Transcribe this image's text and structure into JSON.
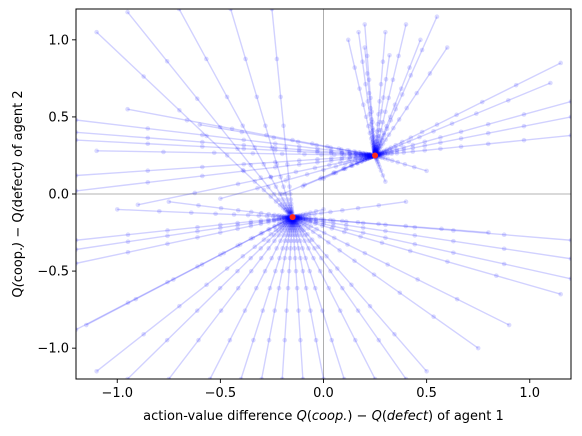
{
  "chart_data": {
    "type": "scatter",
    "xlabel_parts": [
      "action-value difference ",
      "Q",
      "(",
      "coop.",
      ") − ",
      "Q",
      "(",
      "defect",
      ")",
      " of agent 1"
    ],
    "ylabel_parts": [
      "Q",
      "(",
      "coop.",
      ") − ",
      "Q",
      "(",
      "defect",
      ")",
      " of agent 2"
    ],
    "xlim": [
      -1.2,
      1.2
    ],
    "ylim": [
      -1.2,
      1.2
    ],
    "xticks": [
      -1.0,
      -0.5,
      0.0,
      0.5,
      1.0
    ],
    "yticks": [
      -1.0,
      -0.5,
      0.0,
      0.5,
      1.0
    ],
    "xtick_labels": [
      "−1.0",
      "−0.5",
      "0.0",
      "0.5",
      "1.0"
    ],
    "ytick_labels": [
      "−1.0",
      "−0.5",
      "0.0",
      "0.5",
      "1.0"
    ],
    "reference_lines": {
      "x": 0,
      "y": 0
    },
    "fixed_points": [
      {
        "x": 0.25,
        "y": 0.25
      },
      {
        "x": -0.15,
        "y": -0.15
      }
    ],
    "trajectories_converging_to": [
      {
        "target": [
          0.25,
          0.25
        ],
        "starts": [
          [
            0.12,
            1.0
          ],
          [
            0.17,
            1.05
          ],
          [
            0.2,
            1.1
          ],
          [
            0.3,
            1.05
          ],
          [
            0.4,
            1.1
          ],
          [
            0.47,
            1.0
          ],
          [
            0.6,
            0.95
          ],
          [
            1.15,
            0.85
          ],
          [
            1.1,
            0.72
          ],
          [
            1.2,
            0.6
          ],
          [
            1.2,
            0.5
          ],
          [
            1.2,
            0.38
          ],
          [
            0.2,
            0.95
          ],
          [
            0.32,
            0.9
          ],
          [
            0.55,
            1.15
          ],
          [
            -1.2,
            0.48
          ],
          [
            -1.2,
            0.4
          ],
          [
            -1.2,
            0.35
          ],
          [
            -1.2,
            0.12
          ],
          [
            -1.2,
            0.02
          ],
          [
            -0.9,
            -0.07
          ],
          [
            -0.5,
            -0.03
          ],
          [
            -0.2,
            0.0
          ],
          [
            0.0,
            0.1
          ],
          [
            -0.1,
            0.05
          ],
          [
            0.3,
            0.08
          ],
          [
            0.5,
            0.15
          ],
          [
            -0.6,
            0.45
          ],
          [
            -0.95,
            0.55
          ],
          [
            -1.1,
            0.28
          ]
        ]
      },
      {
        "target": [
          -0.15,
          -0.15
        ],
        "starts": [
          [
            -0.7,
            1.2
          ],
          [
            -1.1,
            1.05
          ],
          [
            -0.95,
            1.18
          ],
          [
            -0.45,
            1.2
          ],
          [
            -0.25,
            1.2
          ],
          [
            -1.2,
            -0.3
          ],
          [
            -1.2,
            -0.36
          ],
          [
            -1.2,
            -0.45
          ],
          [
            -1.2,
            -0.88
          ],
          [
            -1.15,
            -0.85
          ],
          [
            -1.1,
            -1.15
          ],
          [
            -0.95,
            -1.2
          ],
          [
            -0.75,
            -1.2
          ],
          [
            -0.55,
            -1.2
          ],
          [
            -0.4,
            -1.2
          ],
          [
            -0.3,
            -1.2
          ],
          [
            -0.2,
            -1.2
          ],
          [
            -0.1,
            -1.2
          ],
          [
            0.0,
            -1.2
          ],
          [
            0.1,
            -1.2
          ],
          [
            0.25,
            -1.2
          ],
          [
            0.4,
            -1.2
          ],
          [
            0.5,
            -1.15
          ],
          [
            0.75,
            -1.0
          ],
          [
            0.9,
            -0.85
          ],
          [
            1.2,
            -0.55
          ],
          [
            1.15,
            -0.65
          ],
          [
            1.2,
            -0.42
          ],
          [
            1.2,
            -0.3
          ],
          [
            0.8,
            -0.25
          ],
          [
            0.4,
            -0.05
          ],
          [
            -0.75,
            -0.05
          ],
          [
            -1.0,
            -0.1
          ],
          [
            0.0,
            -0.1
          ]
        ]
      }
    ]
  }
}
